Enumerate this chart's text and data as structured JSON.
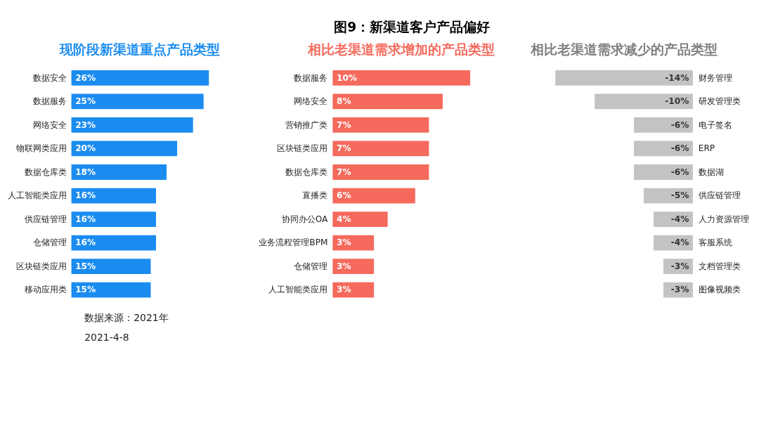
{
  "chart_data": [
    {
      "type": "other",
      "title": "图9：新渠道客户产品偏好",
      "annotations": [
        "数据来源：2021年",
        "2021-4-8"
      ]
    },
    {
      "type": "bar",
      "orientation": "horizontal",
      "title": "现阶段新渠道重点产品类型",
      "color": "#1a8cf0",
      "categories": [
        "数据安全",
        "数据服务",
        "网络安全",
        "物联网类应用",
        "数据仓库类",
        "人工智能类应用",
        "供应链管理",
        "仓储管理",
        "区块链类应用",
        "移动应用类"
      ],
      "values": [
        26,
        25,
        23,
        20,
        18,
        16,
        16,
        16,
        15,
        15
      ],
      "value_labels": [
        "26%",
        "25%",
        "23%",
        "20%",
        "18%",
        "16%",
        "16%",
        "16%",
        "15%",
        "15%"
      ]
    },
    {
      "type": "bar",
      "orientation": "horizontal",
      "title": "相比老渠道需求增加的产品类型",
      "color": "#f56a5c",
      "categories": [
        "数据服务",
        "网络安全",
        "营销推广类",
        "区块链类应用",
        "数据仓库类",
        "直播类",
        "协同办公OA",
        "业务流程管理BPM",
        "仓储管理",
        "人工智能类应用"
      ],
      "values": [
        10,
        8,
        7,
        7,
        7,
        6,
        4,
        3,
        3,
        3
      ],
      "value_labels": [
        "10%",
        "8%",
        "7%",
        "7%",
        "7%",
        "6%",
        "4%",
        "3%",
        "3%",
        "3%"
      ]
    },
    {
      "type": "bar",
      "orientation": "horizontal",
      "title": "相比老渠道需求减少的产品类型",
      "color": "#c3c3c3",
      "categories": [
        "财务管理",
        "研发管理类",
        "电子签名",
        "ERP",
        "数据湖",
        "供应链管理",
        "人力资源管理",
        "客服系统",
        "文档管理类",
        "图像视频类"
      ],
      "values": [
        -14,
        -10,
        -6,
        -6,
        -6,
        -5,
        -4,
        -4,
        -3,
        -3
      ],
      "value_labels": [
        "-14%",
        "-10%",
        "-6%",
        "-6%",
        "-6%",
        "-5%",
        "-4%",
        "-4%",
        "-3%",
        "-3%"
      ]
    }
  ]
}
